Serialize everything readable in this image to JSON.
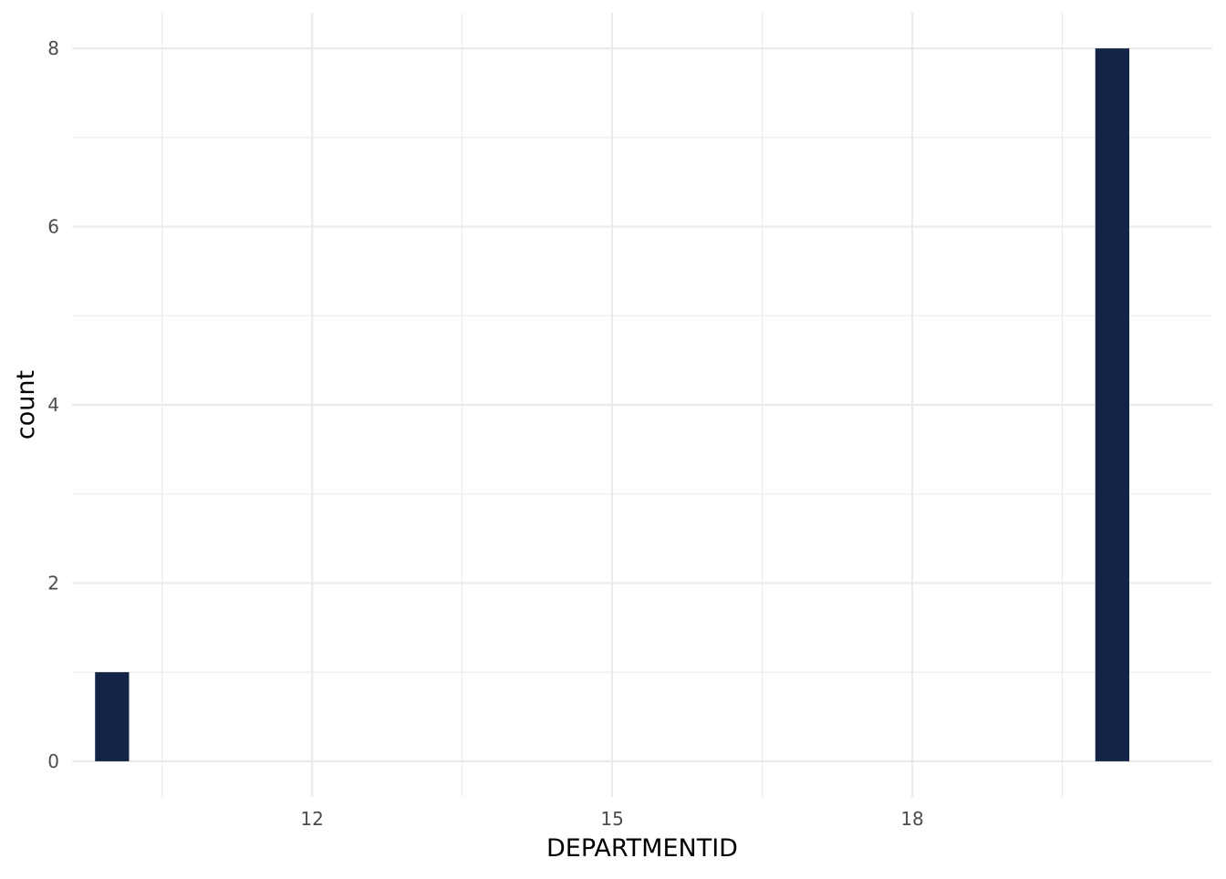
{
  "chart_data": {
    "type": "bar",
    "subtype": "histogram",
    "xlabel": "DEPARTMENTID",
    "ylabel": "count",
    "x_ticks": [
      12,
      15,
      18
    ],
    "y_ticks": [
      0,
      2,
      4,
      6,
      8
    ],
    "xlim": [
      9.6,
      21.0
    ],
    "ylim": [
      -0.4,
      8.4
    ],
    "bin_width": 0.34,
    "bins": [
      {
        "x": 10,
        "count": 1
      },
      {
        "x": 20,
        "count": 8
      }
    ],
    "grid": true,
    "bar_color": "#132447",
    "grid_color": "#ebebeb",
    "background": "#ffffff"
  }
}
